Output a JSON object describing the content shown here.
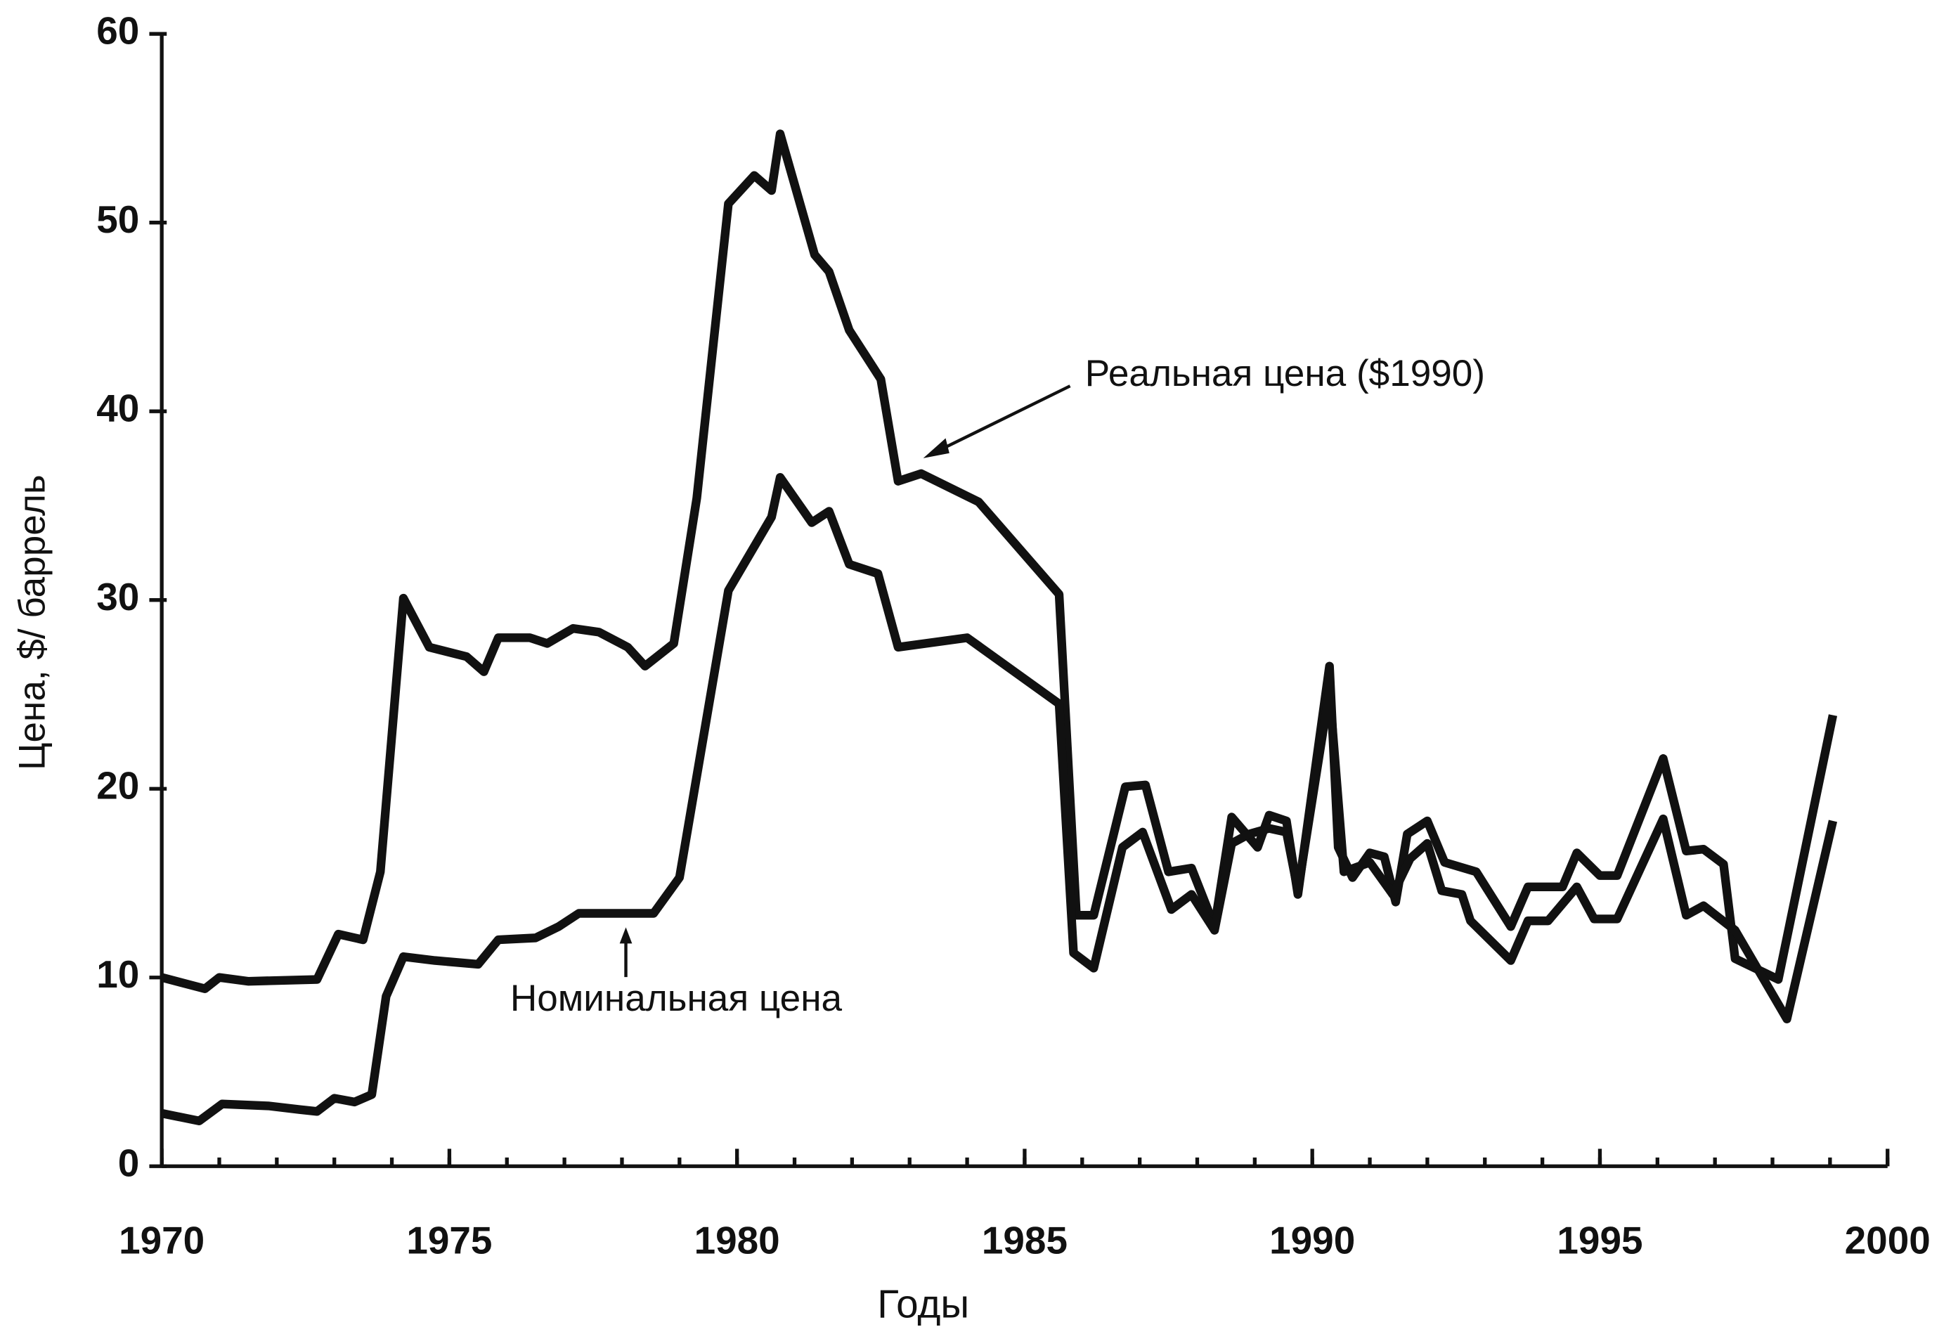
{
  "chart_data": {
    "type": "line",
    "xlabel": "Годы",
    "ylabel": "Цена, $/ баррель",
    "xlim": [
      1970,
      2000
    ],
    "xticks": [
      1970,
      1975,
      1980,
      1985,
      1990,
      1995,
      2000
    ],
    "ylim": [
      0,
      60
    ],
    "yticks": [
      0,
      10,
      20,
      30,
      40,
      50,
      60
    ],
    "series": [
      {
        "name": "Реальная цена ($1990)",
        "color": "#111111",
        "x": [
          1970.0,
          1970.75,
          1971.0,
          1971.5,
          1972.7,
          1973.07,
          1973.5,
          1973.8,
          1974.2,
          1974.65,
          1975.3,
          1975.6,
          1975.85,
          1976.4,
          1976.7,
          1977.15,
          1977.6,
          1978.1,
          1978.4,
          1978.9,
          1979.3,
          1979.85,
          1980.3,
          1980.6,
          1980.75,
          1981.35,
          1981.6,
          1981.95,
          1982.5,
          1982.8,
          1983.2,
          1984.2,
          1985.6,
          1985.9,
          1986.2,
          1986.75,
          1987.1,
          1987.5,
          1987.9,
          1988.3,
          1988.6,
          1989.05,
          1989.25,
          1989.55,
          1989.75,
          1990.3,
          1990.45,
          1990.7,
          1991.0,
          1991.25,
          1991.45,
          1991.65,
          1992.0,
          1992.3,
          1992.85,
          1993.45,
          1993.75,
          1994.35,
          1994.6,
          1995.0,
          1995.3,
          1996.1,
          1996.5,
          1996.8,
          1997.15,
          1997.35,
          1998.1,
          1999.05
        ],
        "values": [
          10.0,
          9.4,
          10.0,
          9.8,
          9.9,
          12.3,
          12.0,
          15.6,
          30.1,
          27.5,
          27.0,
          26.2,
          28.0,
          28.0,
          27.7,
          28.5,
          28.3,
          27.5,
          26.5,
          27.7,
          35.4,
          51.0,
          52.5,
          51.7,
          54.7,
          48.3,
          47.4,
          44.3,
          41.7,
          36.3,
          36.7,
          35.2,
          30.3,
          13.3,
          13.3,
          20.1,
          20.2,
          15.6,
          15.8,
          12.7,
          18.5,
          16.9,
          18.6,
          18.3,
          14.4,
          26.5,
          16.9,
          15.3,
          16.6,
          16.4,
          14.0,
          17.6,
          18.3,
          16.1,
          15.6,
          12.7,
          14.8,
          14.8,
          16.6,
          15.4,
          15.4,
          21.6,
          16.7,
          16.8,
          16.0,
          11.0,
          9.9,
          23.9
        ]
      },
      {
        "name": "Номинальная цена",
        "color": "#111111",
        "x": [
          1970.0,
          1970.65,
          1971.05,
          1971.85,
          1972.4,
          1972.7,
          1973.0,
          1973.35,
          1973.65,
          1973.9,
          1974.2,
          1974.75,
          1975.5,
          1975.85,
          1976.5,
          1976.9,
          1977.25,
          1978.55,
          1979.0,
          1979.85,
          1980.6,
          1980.75,
          1981.3,
          1981.6,
          1981.95,
          1982.45,
          1982.8,
          1984.0,
          1985.6,
          1985.85,
          1986.2,
          1986.7,
          1987.05,
          1987.55,
          1987.9,
          1988.3,
          1988.6,
          1988.9,
          1989.25,
          1989.55,
          1989.75,
          1990.3,
          1990.55,
          1991.0,
          1991.4,
          1991.7,
          1992.0,
          1992.25,
          1992.6,
          1992.75,
          1993.45,
          1993.75,
          1994.1,
          1994.6,
          1994.9,
          1995.3,
          1996.1,
          1996.5,
          1996.8,
          1997.35,
          1998.25,
          1999.05
        ],
        "values": [
          2.8,
          2.4,
          3.3,
          3.2,
          3.0,
          2.9,
          3.6,
          3.4,
          3.8,
          9.0,
          11.1,
          10.9,
          10.7,
          12.0,
          12.1,
          12.7,
          13.4,
          13.4,
          15.3,
          30.5,
          34.4,
          36.5,
          34.1,
          34.7,
          31.9,
          31.4,
          27.5,
          28.0,
          24.5,
          11.3,
          10.5,
          16.9,
          17.7,
          13.6,
          14.4,
          12.5,
          17.1,
          17.6,
          17.9,
          17.7,
          14.6,
          25.2,
          15.6,
          16.1,
          14.4,
          16.3,
          17.1,
          14.6,
          14.4,
          13.0,
          10.9,
          13.0,
          13.0,
          14.8,
          13.1,
          13.1,
          18.4,
          13.3,
          13.8,
          12.5,
          7.8,
          18.3
        ]
      }
    ]
  }
}
